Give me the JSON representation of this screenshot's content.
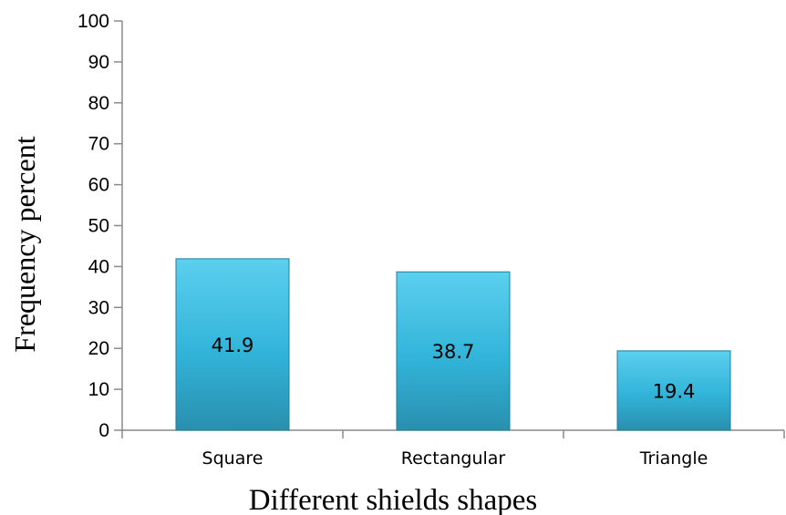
{
  "chart_data": {
    "type": "bar",
    "title": "",
    "xlabel": "Different shields shapes",
    "ylabel": "Frequency percent",
    "categories": [
      "Square",
      "Rectangular",
      "Triangle"
    ],
    "values": [
      41.9,
      38.7,
      19.4
    ],
    "data_labels": [
      "41.9",
      "38.7",
      "19.4"
    ],
    "ylim": [
      0,
      100
    ],
    "yticks": [
      0,
      10,
      20,
      30,
      40,
      50,
      60,
      70,
      80,
      90,
      100
    ],
    "grid": false,
    "legend": "none",
    "colors": {
      "bar_light": "#5ccfee",
      "bar_mid": "#31b4d9",
      "bar_dark": "#2a8fae",
      "bar_edge": "#1f7f9c",
      "axis": "#8a8a8a"
    }
  }
}
